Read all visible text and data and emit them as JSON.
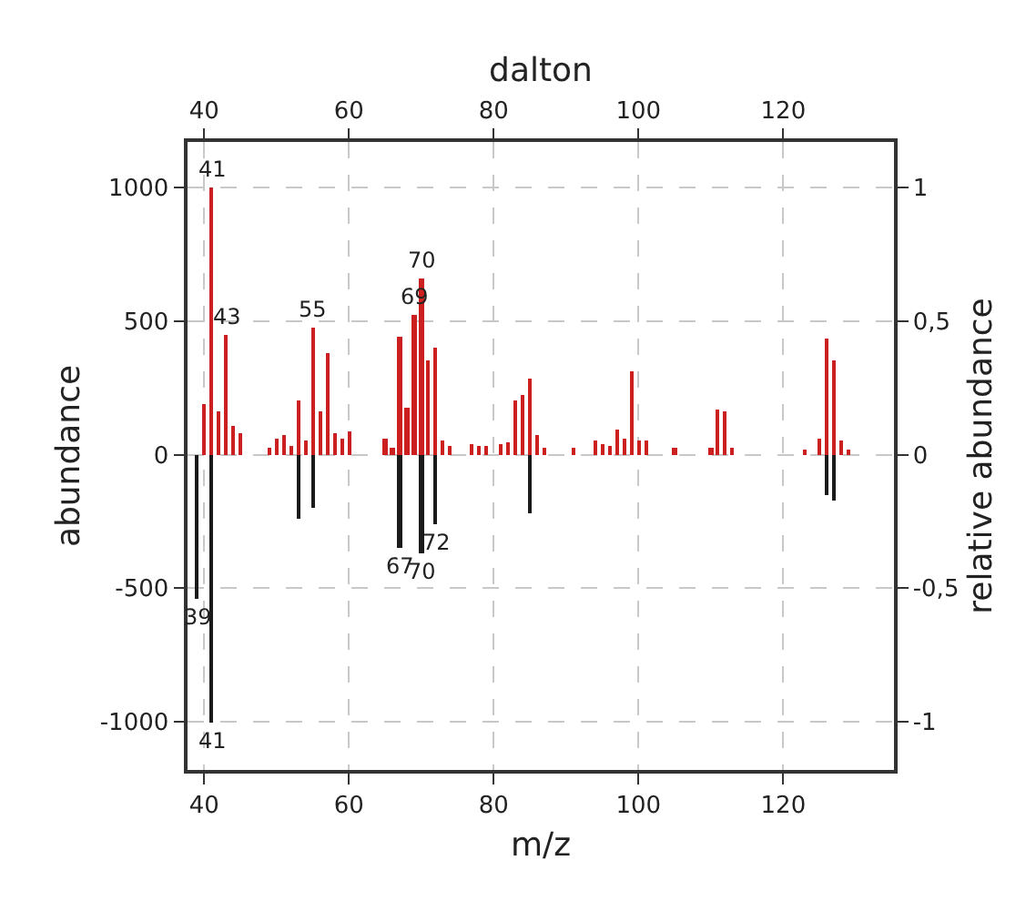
{
  "chart_data": {
    "type": "bar",
    "xlabel": "m/z",
    "x2label": "dalton",
    "ylabel": "abundance",
    "y2label": "relative abundance",
    "xlim": [
      37.7,
      135.3
    ],
    "xticks": [
      40,
      60,
      80,
      100,
      120
    ],
    "x2lim": [
      37.7,
      135.3
    ],
    "x2ticks": [
      40,
      60,
      80,
      100,
      120
    ],
    "ylim": [
      -1180,
      1170
    ],
    "yticks": [
      -1000,
      -500,
      0,
      500,
      1000
    ],
    "y2lim": [
      -1.18,
      1.17
    ],
    "y2ticks": [
      -1,
      {
        "value": -0.5,
        "label": "-0,5"
      },
      0,
      {
        "value": 0.5,
        "label": "0,5"
      },
      1
    ],
    "grid": true,
    "series": [
      {
        "color": "#cc1f1f",
        "x": [
          40,
          41,
          42,
          43,
          44,
          45,
          49,
          50,
          51,
          52,
          53,
          54,
          55,
          56,
          57,
          58,
          59,
          60,
          65,
          66,
          67,
          68,
          69,
          70,
          71,
          72,
          73,
          74,
          77,
          78,
          79,
          81,
          82,
          83,
          84,
          85,
          86,
          87,
          91,
          94,
          95,
          96,
          97,
          98,
          99,
          100,
          101,
          105,
          110,
          111,
          112,
          113,
          123,
          125,
          126,
          127,
          128,
          129
        ],
        "values": [
          188,
          1000,
          159,
          449,
          109,
          79,
          23,
          59,
          70,
          34,
          200,
          52,
          478,
          159,
          381,
          82,
          61,
          88,
          59,
          23,
          442,
          177,
          524,
          660,
          354,
          401,
          50,
          34,
          39,
          34,
          34,
          41,
          45,
          204,
          224,
          283,
          70,
          23,
          29,
          52,
          41,
          34,
          97,
          59,
          313,
          52,
          52,
          23,
          29,
          166,
          159,
          29,
          18,
          59,
          431,
          351,
          52,
          18
        ]
      },
      {
        "color": "#1a1a1a",
        "x": [
          39,
          41,
          53,
          55,
          67,
          70,
          72,
          85,
          126,
          127
        ],
        "values": [
          -537,
          -1000,
          -240,
          -196,
          -348,
          -371,
          -263,
          -218,
          -151,
          -173
        ]
      }
    ],
    "annotations": [
      {
        "text": "41",
        "x": 41,
        "y": 1000
      },
      {
        "text": "43",
        "x": 43,
        "y": 449
      },
      {
        "text": "55",
        "x": 55,
        "y": 478
      },
      {
        "text": "69",
        "x": 69,
        "y": 524
      },
      {
        "text": "70",
        "x": 70,
        "y": 660
      },
      {
        "text": "39",
        "x": 39,
        "y": -537
      },
      {
        "text": "41",
        "x": 41,
        "y": -1000
      },
      {
        "text": "67",
        "x": 67,
        "y": -348
      },
      {
        "text": "70",
        "x": 70,
        "y": -371
      },
      {
        "text": "72",
        "x": 72,
        "y": -263
      }
    ]
  }
}
